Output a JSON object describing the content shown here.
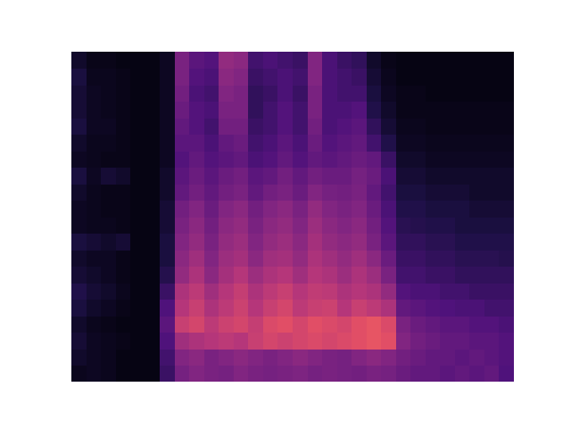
{
  "chart_data": {
    "type": "heatmap",
    "xlim": [
      0,
      30
    ],
    "ylim": [
      0,
      20
    ],
    "tick_labels": false,
    "color_range": [
      0,
      100
    ],
    "cells": [
      [
        5,
        6,
        5,
        3,
        3,
        3,
        20,
        35,
        38,
        36,
        35,
        38,
        36,
        35,
        36,
        37,
        35,
        36,
        35,
        34,
        36,
        35,
        32,
        30,
        30,
        28,
        30,
        28,
        30,
        25
      ],
      [
        8,
        6,
        5,
        3,
        3,
        3,
        22,
        38,
        40,
        36,
        38,
        40,
        38,
        36,
        38,
        40,
        38,
        36,
        35,
        38,
        40,
        38,
        34,
        32,
        30,
        30,
        28,
        30,
        28,
        26
      ],
      [
        10,
        6,
        5,
        4,
        3,
        3,
        25,
        45,
        48,
        50,
        52,
        50,
        55,
        58,
        56,
        58,
        60,
        58,
        60,
        62,
        64,
        62,
        38,
        34,
        32,
        30,
        30,
        28,
        28,
        26
      ],
      [
        8,
        5,
        4,
        3,
        3,
        3,
        28,
        55,
        58,
        52,
        56,
        58,
        54,
        60,
        62,
        58,
        62,
        60,
        58,
        62,
        64,
        60,
        36,
        32,
        30,
        28,
        28,
        26,
        26,
        24
      ],
      [
        12,
        8,
        6,
        4,
        3,
        3,
        25,
        50,
        55,
        48,
        52,
        56,
        50,
        55,
        58,
        52,
        55,
        56,
        50,
        55,
        52,
        48,
        30,
        28,
        26,
        25,
        24,
        24,
        22,
        22
      ],
      [
        14,
        10,
        8,
        5,
        3,
        3,
        20,
        48,
        52,
        45,
        50,
        54,
        48,
        52,
        55,
        50,
        53,
        52,
        48,
        50,
        48,
        42,
        26,
        24,
        24,
        22,
        22,
        20,
        20,
        20
      ],
      [
        10,
        8,
        6,
        4,
        3,
        3,
        15,
        42,
        48,
        40,
        46,
        50,
        44,
        48,
        50,
        45,
        50,
        48,
        44,
        48,
        44,
        36,
        22,
        22,
        20,
        20,
        18,
        18,
        18,
        18
      ],
      [
        8,
        6,
        6,
        4,
        3,
        3,
        12,
        40,
        45,
        38,
        44,
        46,
        40,
        45,
        46,
        42,
        48,
        45,
        42,
        45,
        40,
        32,
        20,
        20,
        18,
        18,
        16,
        16,
        16,
        15
      ],
      [
        12,
        10,
        8,
        10,
        3,
        3,
        12,
        38,
        42,
        36,
        42,
        44,
        38,
        42,
        44,
        40,
        46,
        42,
        40,
        42,
        36,
        28,
        18,
        18,
        16,
        16,
        14,
        14,
        14,
        14
      ],
      [
        6,
        5,
        5,
        4,
        3,
        3,
        10,
        36,
        40,
        34,
        40,
        42,
        36,
        40,
        42,
        38,
        44,
        40,
        38,
        40,
        34,
        26,
        16,
        15,
        14,
        14,
        12,
        12,
        12,
        12
      ],
      [
        6,
        5,
        4,
        4,
        3,
        3,
        10,
        34,
        38,
        32,
        38,
        40,
        34,
        38,
        40,
        36,
        42,
        38,
        36,
        38,
        32,
        24,
        14,
        14,
        12,
        12,
        12,
        10,
        10,
        10
      ],
      [
        8,
        5,
        4,
        4,
        3,
        3,
        8,
        30,
        34,
        30,
        34,
        36,
        30,
        34,
        36,
        32,
        38,
        35,
        34,
        36,
        30,
        22,
        12,
        12,
        10,
        10,
        10,
        8,
        8,
        8
      ],
      [
        12,
        6,
        10,
        8,
        3,
        3,
        8,
        28,
        32,
        28,
        32,
        34,
        28,
        30,
        34,
        30,
        34,
        32,
        32,
        35,
        32,
        24,
        10,
        10,
        8,
        8,
        8,
        8,
        8,
        8
      ],
      [
        6,
        5,
        4,
        4,
        3,
        3,
        6,
        26,
        30,
        26,
        28,
        30,
        24,
        26,
        30,
        26,
        30,
        28,
        30,
        32,
        30,
        20,
        8,
        8,
        6,
        6,
        6,
        6,
        6,
        6
      ],
      [
        8,
        5,
        5,
        4,
        3,
        3,
        6,
        28,
        28,
        24,
        30,
        32,
        22,
        24,
        28,
        24,
        32,
        26,
        28,
        30,
        22,
        14,
        6,
        6,
        5,
        5,
        5,
        5,
        5,
        5
      ],
      [
        12,
        6,
        6,
        4,
        3,
        3,
        6,
        30,
        26,
        22,
        34,
        34,
        20,
        22,
        26,
        22,
        34,
        24,
        26,
        28,
        18,
        10,
        5,
        5,
        4,
        4,
        4,
        4,
        4,
        4
      ],
      [
        10,
        6,
        5,
        4,
        3,
        3,
        6,
        32,
        26,
        24,
        36,
        36,
        18,
        22,
        26,
        22,
        36,
        24,
        24,
        26,
        14,
        8,
        4,
        4,
        4,
        4,
        4,
        4,
        4,
        4
      ],
      [
        10,
        6,
        5,
        4,
        3,
        3,
        6,
        34,
        24,
        22,
        38,
        36,
        18,
        20,
        24,
        20,
        36,
        24,
        22,
        22,
        12,
        6,
        4,
        4,
        3,
        3,
        3,
        3,
        3,
        3
      ],
      [
        12,
        5,
        5,
        4,
        3,
        3,
        6,
        36,
        26,
        24,
        40,
        38,
        20,
        22,
        24,
        22,
        38,
        24,
        22,
        20,
        10,
        5,
        3,
        3,
        3,
        3,
        3,
        3,
        3,
        3
      ],
      [
        8,
        4,
        4,
        3,
        3,
        3,
        6,
        36,
        28,
        26,
        42,
        40,
        22,
        24,
        22,
        20,
        38,
        24,
        20,
        18,
        8,
        4,
        3,
        3,
        3,
        3,
        3,
        3,
        3,
        3
      ]
    ]
  }
}
